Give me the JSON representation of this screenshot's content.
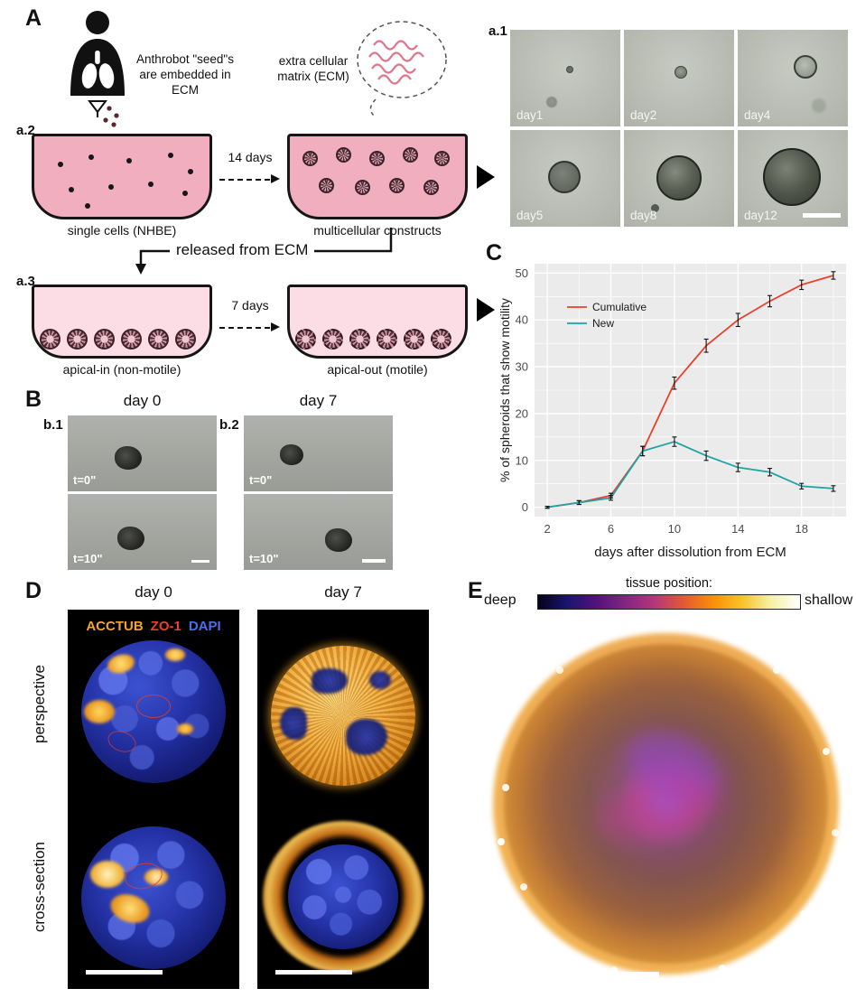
{
  "figure": {
    "panel_a": {
      "label": "A",
      "a1": "a.1",
      "a2": "a.2",
      "a3": "a.3",
      "seed_text": "Anthrobot \"seed\"s are embedded in ECM",
      "ecm_text": "extra cellular matrix (ECM)",
      "duration1": "14 days",
      "dish1_caption": "single cells (NHBE)",
      "dish2_caption": "multicellular constructs",
      "released_text": "released from ECM",
      "duration2": "7 days",
      "dish3_caption": "apical-in (non-motile)",
      "dish4_caption": "apical-out (motile)",
      "micrograph_days": [
        "day1",
        "day2",
        "day4",
        "day5",
        "day8",
        "day12"
      ]
    },
    "panel_b": {
      "label": "B",
      "b1": "b.1",
      "b2": "b.2",
      "col_titles": [
        "day 0",
        "day 7"
      ],
      "time_labels": [
        "t=0\"",
        "t=10\""
      ]
    },
    "panel_c": {
      "label": "C"
    },
    "panel_d": {
      "label": "D",
      "col_titles": [
        "day 0",
        "day 7"
      ],
      "stains": [
        {
          "name": "ACCTUB",
          "color": "#f2a431"
        },
        {
          "name": "ZO-1",
          "color": "#e8412c"
        },
        {
          "name": "DAPI",
          "color": "#4a6fe8"
        }
      ],
      "row_titles": [
        "perspective",
        "cross-section"
      ]
    },
    "panel_e": {
      "label": "E",
      "colorbar_title": "tissue position:",
      "colorbar_min": "deep",
      "colorbar_max": "shallow",
      "colorbar_stops": [
        "#05031a",
        "#1b1470",
        "#51127c",
        "#822681",
        "#b5367a",
        "#e35933",
        "#f98e09",
        "#fac228",
        "#f5f1a4",
        "#ffffff"
      ]
    }
  },
  "chart_data": {
    "type": "line",
    "title": "",
    "xlabel": "days after dissolution from ECM",
    "ylabel": "% of spheroids that show motility",
    "x": [
      2,
      4,
      6,
      8,
      10,
      12,
      14,
      16,
      18,
      20
    ],
    "series": [
      {
        "name": "Cumulative",
        "color": "#e8412c",
        "values": [
          0,
          1,
          2.5,
          12,
          26.5,
          34.5,
          40,
          44,
          47.5,
          49.5
        ],
        "errors": [
          0.2,
          0.4,
          0.5,
          1,
          1.3,
          1.4,
          1.4,
          1.2,
          1,
          0.8
        ]
      },
      {
        "name": "New",
        "color": "#1fa3a3",
        "values": [
          0,
          1,
          2,
          12,
          14,
          11,
          8.5,
          7.5,
          4.5,
          4
        ],
        "errors": [
          0.2,
          0.4,
          0.5,
          1,
          1,
          1,
          0.9,
          0.8,
          0.6,
          0.6
        ]
      }
    ],
    "xticks": [
      2,
      6,
      10,
      14,
      18
    ],
    "yticks": [
      0,
      10,
      20,
      30,
      40,
      50
    ],
    "xlim": [
      1.2,
      20.8
    ],
    "ylim": [
      -2,
      52
    ],
    "panel_bg": "#ebebeb",
    "grid": true,
    "legend_position": "inside-top-left"
  }
}
